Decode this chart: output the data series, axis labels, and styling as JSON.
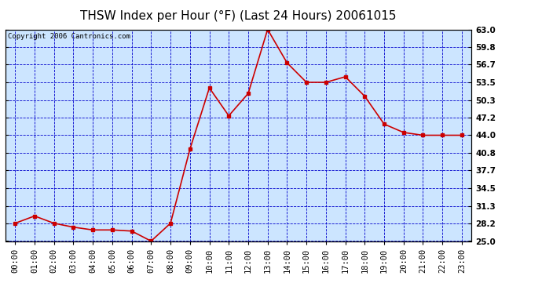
{
  "title": "THSW Index per Hour (°F) (Last 24 Hours) 20061015",
  "copyright": "Copyright 2006 Cantronics.com",
  "x_labels": [
    "00:00",
    "01:00",
    "02:00",
    "03:00",
    "04:00",
    "05:00",
    "06:00",
    "07:00",
    "08:00",
    "09:00",
    "10:00",
    "11:00",
    "12:00",
    "13:00",
    "14:00",
    "15:00",
    "16:00",
    "17:00",
    "18:00",
    "19:00",
    "20:00",
    "21:00",
    "22:00",
    "23:00"
  ],
  "y_values": [
    28.2,
    29.5,
    28.2,
    27.5,
    27.0,
    27.0,
    26.8,
    25.0,
    28.2,
    41.5,
    52.5,
    47.5,
    51.5,
    63.0,
    57.0,
    53.5,
    53.5,
    54.5,
    51.0,
    46.0,
    44.5,
    44.0,
    44.0,
    44.0
  ],
  "line_color": "#cc0000",
  "marker_color": "#cc0000",
  "background_color": "#ffffff",
  "plot_bg_color": "#cce5ff",
  "grid_color": "#0000cc",
  "border_color": "#000000",
  "title_color": "#000000",
  "ymin": 25.0,
  "ymax": 63.0,
  "yticks": [
    25.0,
    28.2,
    31.3,
    34.5,
    37.7,
    40.8,
    44.0,
    47.2,
    50.3,
    53.5,
    56.7,
    59.8,
    63.0
  ],
  "ytick_labels": [
    "25.0",
    "28.2",
    "31.3",
    "34.5",
    "37.7",
    "40.8",
    "44.0",
    "47.2",
    "50.3",
    "53.5",
    "56.7",
    "59.8",
    "63.0"
  ],
  "title_fontsize": 11,
  "axis_fontsize": 7.5,
  "copyright_fontsize": 6.5
}
